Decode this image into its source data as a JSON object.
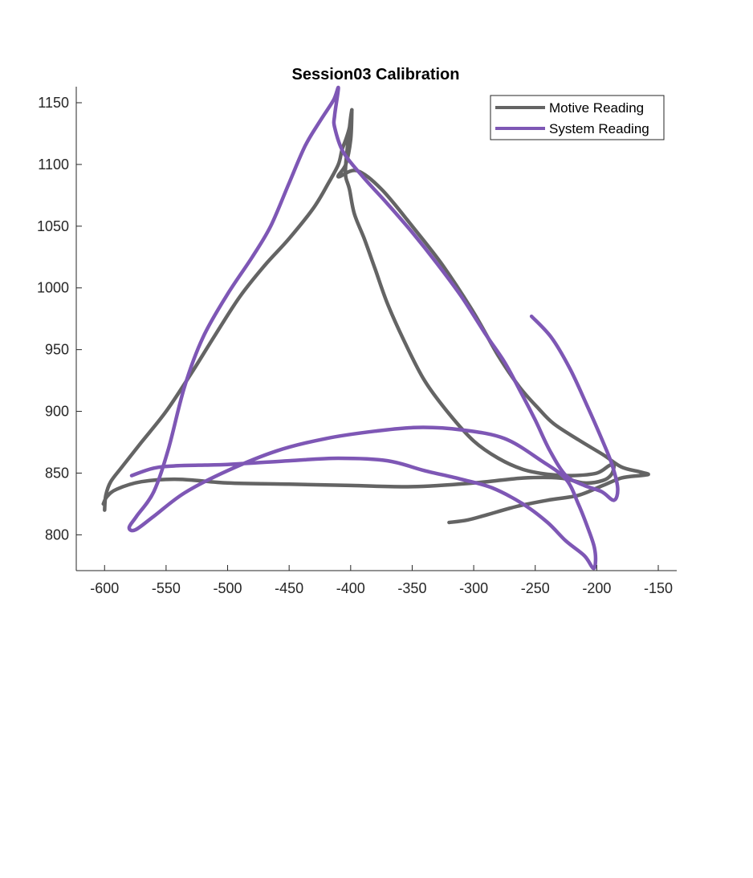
{
  "chart_data": {
    "type": "line",
    "title": "Session03 Calibration",
    "xlabel": "",
    "ylabel": "",
    "xlim": [
      -623,
      -135
    ],
    "ylim": [
      771,
      1163
    ],
    "xticks": [
      -600,
      -550,
      -500,
      -450,
      -400,
      -350,
      -300,
      -250,
      -200,
      -150
    ],
    "yticks": [
      800,
      850,
      900,
      950,
      1000,
      1050,
      1100,
      1150
    ],
    "grid": false,
    "legend_position": "top-right",
    "series": [
      {
        "name": "Motive Reading",
        "color": "#646464",
        "points": [
          [
            -600,
            820
          ],
          [
            -599,
            832
          ],
          [
            -595,
            843
          ],
          [
            -585,
            856
          ],
          [
            -570,
            875
          ],
          [
            -550,
            900
          ],
          [
            -530,
            930
          ],
          [
            -510,
            962
          ],
          [
            -490,
            993
          ],
          [
            -470,
            1018
          ],
          [
            -450,
            1040
          ],
          [
            -430,
            1065
          ],
          [
            -418,
            1085
          ],
          [
            -410,
            1100
          ],
          [
            -407,
            1112
          ],
          [
            -404,
            1120
          ],
          [
            -401,
            1130
          ],
          [
            -399,
            1144
          ],
          [
            -400,
            1138
          ],
          [
            -402,
            1120
          ],
          [
            -404,
            1100
          ],
          [
            -404,
            1090
          ],
          [
            -401,
            1080
          ],
          [
            -397,
            1060
          ],
          [
            -389,
            1040
          ],
          [
            -380,
            1015
          ],
          [
            -370,
            987
          ],
          [
            -357,
            958
          ],
          [
            -340,
            925
          ],
          [
            -320,
            898
          ],
          [
            -300,
            876
          ],
          [
            -280,
            862
          ],
          [
            -260,
            853
          ],
          [
            -240,
            849
          ],
          [
            -220,
            848
          ],
          [
            -200,
            850
          ],
          [
            -190,
            856
          ],
          [
            -186,
            857
          ],
          [
            -188,
            849
          ],
          [
            -195,
            844
          ],
          [
            -210,
            842
          ],
          [
            -230,
            846
          ],
          [
            -260,
            846
          ],
          [
            -300,
            842
          ],
          [
            -350,
            839
          ],
          [
            -400,
            840
          ],
          [
            -450,
            841
          ],
          [
            -500,
            842
          ],
          [
            -540,
            845
          ],
          [
            -570,
            843
          ],
          [
            -590,
            837
          ],
          [
            -598,
            831
          ],
          [
            -601,
            825
          ]
        ],
        "tail": [
          [
            -399,
            1144
          ],
          [
            -400,
            1120
          ],
          [
            -404,
            1100
          ],
          [
            -410,
            1090
          ],
          [
            -395,
            1095
          ],
          [
            -375,
            1080
          ],
          [
            -350,
            1050
          ],
          [
            -325,
            1018
          ],
          [
            -300,
            980
          ],
          [
            -280,
            945
          ],
          [
            -263,
            920
          ],
          [
            -248,
            903
          ],
          [
            -235,
            890
          ],
          [
            -215,
            877
          ],
          [
            -195,
            865
          ],
          [
            -180,
            855
          ],
          [
            -165,
            851
          ],
          [
            -158,
            849
          ],
          [
            -165,
            848
          ],
          [
            -180,
            846
          ],
          [
            -195,
            840
          ],
          [
            -215,
            832
          ],
          [
            -240,
            828
          ],
          [
            -265,
            823
          ],
          [
            -290,
            816
          ],
          [
            -305,
            812
          ],
          [
            -320,
            810
          ]
        ]
      },
      {
        "name": "System Reading",
        "color": "#7E57B5",
        "points": [
          [
            -578,
            848
          ],
          [
            -560,
            854
          ],
          [
            -540,
            856
          ],
          [
            -500,
            857
          ],
          [
            -450,
            860
          ],
          [
            -410,
            862
          ],
          [
            -370,
            860
          ],
          [
            -340,
            852
          ],
          [
            -310,
            845
          ],
          [
            -285,
            838
          ],
          [
            -260,
            825
          ],
          [
            -240,
            810
          ],
          [
            -225,
            795
          ],
          [
            -210,
            783
          ],
          [
            -203,
            773
          ],
          [
            -201,
            778
          ],
          [
            -202,
            790
          ],
          [
            -207,
            805
          ],
          [
            -215,
            825
          ],
          [
            -225,
            845
          ],
          [
            -245,
            860
          ],
          [
            -275,
            878
          ],
          [
            -310,
            885
          ],
          [
            -345,
            887
          ],
          [
            -380,
            884
          ],
          [
            -420,
            878
          ],
          [
            -460,
            868
          ],
          [
            -500,
            852
          ],
          [
            -535,
            834
          ],
          [
            -560,
            815
          ],
          [
            -575,
            804
          ],
          [
            -580,
            806
          ],
          [
            -574,
            815
          ],
          [
            -560,
            835
          ],
          [
            -548,
            870
          ],
          [
            -535,
            920
          ],
          [
            -520,
            960
          ],
          [
            -500,
            995
          ],
          [
            -480,
            1025
          ],
          [
            -465,
            1050
          ],
          [
            -450,
            1085
          ],
          [
            -437,
            1115
          ],
          [
            -425,
            1135
          ],
          [
            -414,
            1152
          ],
          [
            -410,
            1162
          ],
          [
            -413,
            1140
          ],
          [
            -413,
            1130
          ],
          [
            -406,
            1110
          ],
          [
            -390,
            1090
          ],
          [
            -370,
            1068
          ],
          [
            -350,
            1045
          ],
          [
            -330,
            1020
          ],
          [
            -310,
            993
          ],
          [
            -290,
            962
          ],
          [
            -275,
            940
          ],
          [
            -263,
            918
          ],
          [
            -250,
            893
          ],
          [
            -238,
            868
          ],
          [
            -225,
            848
          ],
          [
            -210,
            840
          ],
          [
            -196,
            835
          ],
          [
            -186,
            828
          ],
          [
            -183,
            838
          ],
          [
            -188,
            858
          ],
          [
            -197,
            880
          ],
          [
            -208,
            905
          ],
          [
            -222,
            935
          ],
          [
            -237,
            960
          ],
          [
            -253,
            977
          ]
        ]
      }
    ]
  }
}
